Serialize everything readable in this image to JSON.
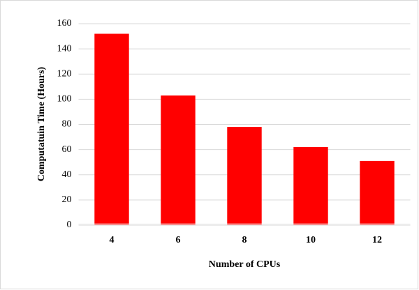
{
  "chart_data": {
    "type": "bar",
    "xlabel": "Number of CPUs",
    "ylabel": "Computatuin Time (Hours)",
    "categories": [
      "4",
      "6",
      "8",
      "10",
      "12"
    ],
    "values": [
      152,
      103,
      78,
      62,
      51
    ],
    "color": "#ff0000",
    "ylim": [
      0,
      160
    ],
    "yticks": [
      0,
      20,
      40,
      60,
      80,
      100,
      120,
      140,
      160
    ],
    "grid": true
  }
}
